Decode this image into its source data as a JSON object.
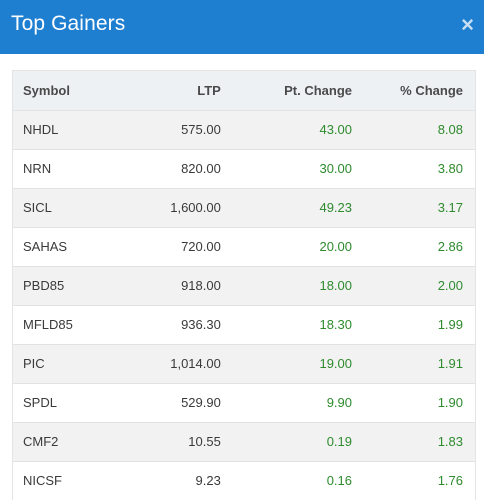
{
  "dialog": {
    "title": "Top Gainers",
    "close_label": "×"
  },
  "table": {
    "columns": [
      "Symbol",
      "LTP",
      "Pt. Change",
      "% Change"
    ],
    "rows": [
      [
        "NHDL",
        "575.00",
        "43.00",
        "8.08"
      ],
      [
        "NRN",
        "820.00",
        "30.00",
        "3.80"
      ],
      [
        "SICL",
        "1,600.00",
        "49.23",
        "3.17"
      ],
      [
        "SAHAS",
        "720.00",
        "20.00",
        "2.86"
      ],
      [
        "PBD85",
        "918.00",
        "18.00",
        "2.00"
      ],
      [
        "MFLD85",
        "936.30",
        "18.30",
        "1.99"
      ],
      [
        "PIC",
        "1,014.00",
        "19.00",
        "1.91"
      ],
      [
        "SPDL",
        "529.90",
        "9.90",
        "1.90"
      ],
      [
        "CMF2",
        "10.55",
        "0.19",
        "1.83"
      ],
      [
        "NICSF",
        "9.23",
        "0.16",
        "1.76"
      ]
    ]
  },
  "colors": {
    "header_bg": "#1e7fd1",
    "gain_green": "#2e8b2e"
  }
}
